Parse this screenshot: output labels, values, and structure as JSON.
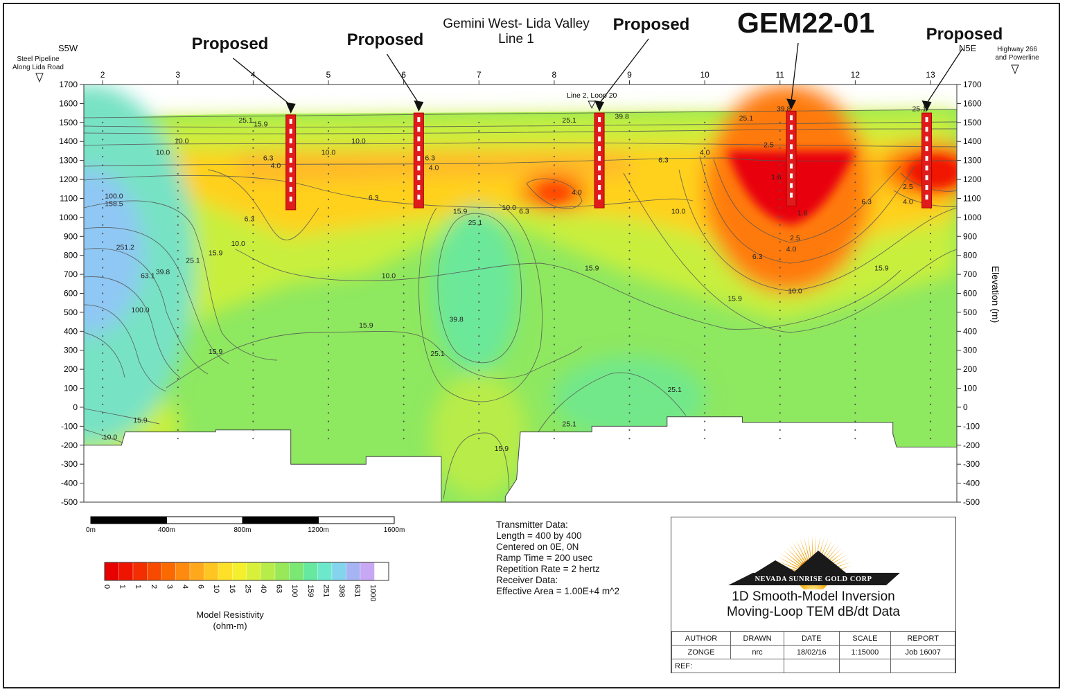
{
  "colors": {
    "very_low": "#e8000b",
    "low": "#ff6a00",
    "mid_low": "#ffd11a",
    "mid": "#c9ef3d",
    "mid_high": "#8ee860",
    "high": "#66e8c8",
    "very_high": "#8fc8f4",
    "hole": "#e01b1b"
  },
  "chart_data": {
    "type": "heatmap",
    "title": "Gemini West- Lida Valley",
    "subtitle": "Line 1",
    "left_direction": "S5W",
    "right_direction": "N5E",
    "left_marker": [
      "Steel Pipeline",
      "Along Lida Road"
    ],
    "right_marker": [
      "Highway 266",
      "and Powerline"
    ],
    "station_ticks": [
      "2",
      "3",
      "4",
      "5",
      "6",
      "7",
      "8",
      "9",
      "10",
      "11",
      "12",
      "13"
    ],
    "x_range": [
      1.75,
      13.35
    ],
    "ylabel": "Elevation (m)",
    "ylim": [
      -500,
      1700
    ],
    "y_ticks": [
      "1700",
      "1600",
      "1500",
      "1400",
      "1300",
      "1200",
      "1100",
      "1000",
      "900",
      "800",
      "700",
      "600",
      "500",
      "400",
      "300",
      "200",
      "100",
      "0",
      "-100",
      "-200",
      "-300",
      "-400",
      "-500"
    ],
    "drill_holes": [
      {
        "label": "Proposed",
        "station": 4.5,
        "top": 1540,
        "bottom": 1040
      },
      {
        "label": "Proposed",
        "station": 6.2,
        "top": 1550,
        "bottom": 1050
      },
      {
        "label": "Proposed",
        "station": 8.6,
        "top": 1550,
        "bottom": 1050
      },
      {
        "label": "GEM22-01",
        "station": 11.15,
        "top": 1560,
        "bottom": 1060
      },
      {
        "label": "Proposed",
        "station": 12.95,
        "top": 1550,
        "bottom": 1050
      }
    ],
    "annotation": "Line 2, Loop 20",
    "annotation_station": 8.5,
    "contour_labels": [
      {
        "text": "251.2",
        "x": 2.3,
        "y": 830
      },
      {
        "text": "158.5",
        "x": 2.15,
        "y": 1060
      },
      {
        "text": "100.0",
        "x": 2.15,
        "y": 1100
      },
      {
        "text": "63.1",
        "x": 2.6,
        "y": 680
      },
      {
        "text": "39.8",
        "x": 2.8,
        "y": 700
      },
      {
        "text": "25.1",
        "x": 3.2,
        "y": 760
      },
      {
        "text": "15.9",
        "x": 3.5,
        "y": 800
      },
      {
        "text": "10.0",
        "x": 3.8,
        "y": 850
      },
      {
        "text": "6.3",
        "x": 3.95,
        "y": 980
      },
      {
        "text": "100.0",
        "x": 2.5,
        "y": 500
      },
      {
        "text": "15.9",
        "x": 3.5,
        "y": 280
      },
      {
        "text": "15.9",
        "x": 2.5,
        "y": -80
      },
      {
        "text": "10.0",
        "x": 2.1,
        "y": -170
      },
      {
        "text": "25.1",
        "x": 3.9,
        "y": 1500
      },
      {
        "text": "15.9",
        "x": 4.1,
        "y": 1480
      },
      {
        "text": "10.0",
        "x": 3.05,
        "y": 1390
      },
      {
        "text": "10.0",
        "x": 2.8,
        "y": 1330
      },
      {
        "text": "6.3",
        "x": 4.2,
        "y": 1300
      },
      {
        "text": "4.0",
        "x": 4.3,
        "y": 1260
      },
      {
        "text": "10.0",
        "x": 5.4,
        "y": 1390
      },
      {
        "text": "10.0",
        "x": 5.0,
        "y": 1330
      },
      {
        "text": "6.3",
        "x": 6.35,
        "y": 1300
      },
      {
        "text": "4.0",
        "x": 6.4,
        "y": 1250
      },
      {
        "text": "6.3",
        "x": 5.6,
        "y": 1090
      },
      {
        "text": "15.9",
        "x": 6.75,
        "y": 1020
      },
      {
        "text": "25.1",
        "x": 6.95,
        "y": 960
      },
      {
        "text": "10.0",
        "x": 7.4,
        "y": 1040
      },
      {
        "text": "6.3",
        "x": 7.6,
        "y": 1020
      },
      {
        "text": "10.0",
        "x": 5.8,
        "y": 680
      },
      {
        "text": "15.9",
        "x": 5.5,
        "y": 420
      },
      {
        "text": "39.8",
        "x": 6.7,
        "y": 450
      },
      {
        "text": "25.1",
        "x": 6.45,
        "y": 270
      },
      {
        "text": "15.9",
        "x": 7.3,
        "y": -230
      },
      {
        "text": "25.1",
        "x": 8.2,
        "y": 1500
      },
      {
        "text": "39.8",
        "x": 8.9,
        "y": 1520
      },
      {
        "text": "6.3",
        "x": 9.45,
        "y": 1290
      },
      {
        "text": "4.0",
        "x": 8.3,
        "y": 1120
      },
      {
        "text": "10.0",
        "x": 9.65,
        "y": 1020
      },
      {
        "text": "15.9",
        "x": 8.5,
        "y": 720
      },
      {
        "text": "4.0",
        "x": 10.0,
        "y": 1330
      },
      {
        "text": "25.1",
        "x": 10.55,
        "y": 1510
      },
      {
        "text": "39.8",
        "x": 11.05,
        "y": 1560
      },
      {
        "text": "2.5",
        "x": 10.85,
        "y": 1370
      },
      {
        "text": "1.6",
        "x": 10.95,
        "y": 1200
      },
      {
        "text": "1.6",
        "x": 11.3,
        "y": 1010
      },
      {
        "text": "2.5",
        "x": 11.2,
        "y": 880
      },
      {
        "text": "4.0",
        "x": 11.15,
        "y": 820
      },
      {
        "text": "6.3",
        "x": 10.7,
        "y": 780
      },
      {
        "text": "10.0",
        "x": 11.2,
        "y": 600
      },
      {
        "text": "15.9",
        "x": 10.4,
        "y": 560
      },
      {
        "text": "15.9",
        "x": 12.35,
        "y": 720
      },
      {
        "text": "25.1",
        "x": 9.6,
        "y": 80
      },
      {
        "text": "25.1",
        "x": 8.2,
        "y": -100
      },
      {
        "text": "6.3",
        "x": 12.15,
        "y": 1070
      },
      {
        "text": "2.5",
        "x": 12.7,
        "y": 1150
      },
      {
        "text": "4.0",
        "x": 12.7,
        "y": 1070
      },
      {
        "text": "25.1",
        "x": 12.85,
        "y": 1560
      }
    ]
  },
  "scale_bar": {
    "labels": [
      "0m",
      "400m",
      "800m",
      "1200m",
      "1600m"
    ]
  },
  "legend": {
    "title": [
      "Model Resistivity",
      "(ohm-m)"
    ],
    "values": [
      "0",
      "1",
      "1",
      "2",
      "3",
      "4",
      "6",
      "10",
      "16",
      "25",
      "40",
      "63",
      "100",
      "159",
      "251",
      "398",
      "631",
      "1000"
    ],
    "colors": [
      "#e60000",
      "#ee1400",
      "#f32e00",
      "#f74a00",
      "#fb6a00",
      "#ff8a10",
      "#ffa81c",
      "#ffc520",
      "#ffe028",
      "#f4f02e",
      "#d8f03a",
      "#b8ec48",
      "#98e85a",
      "#7ae872",
      "#66e8a0",
      "#6ee8cc",
      "#84d4ee",
      "#a6b4f4",
      "#c8a8f4",
      "#ffffff"
    ]
  },
  "transmitter": {
    "lines": [
      "Transmitter Data:",
      "Length = 400 by 400",
      "Centered on 0E, 0N",
      "Ramp Time = 200 usec",
      "Repetition Rate = 2 hertz",
      "Receiver Data:",
      "Effective Area = 1.00E+4 m^2"
    ]
  },
  "title_block": {
    "company": "NEVADA SUNRISE GOLD CORP",
    "heading": [
      "1D Smooth-Model Inversion",
      "Moving-Loop TEM dB/dt Data"
    ],
    "headers": [
      "AUTHOR",
      "DRAWN",
      "DATE",
      "SCALE",
      "REPORT"
    ],
    "values": [
      "ZONGE",
      "nrc",
      "18/02/16",
      "1:15000",
      "Job 16007"
    ],
    "ref_label": "REF:"
  }
}
